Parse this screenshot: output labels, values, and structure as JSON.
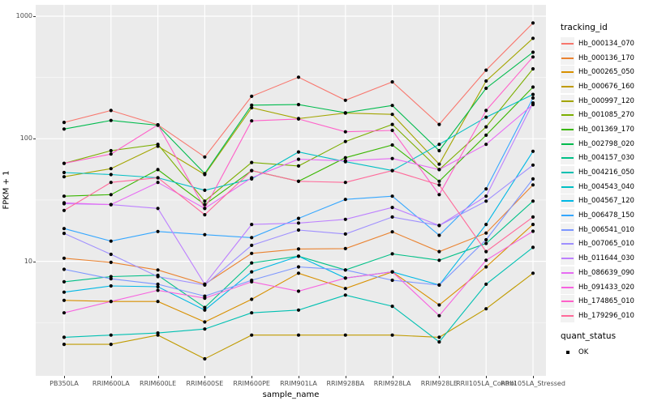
{
  "page": {
    "background": "#FFFFFF"
  },
  "panel": {
    "background": "#EBEBEB",
    "grid_major_color": "#FFFFFF",
    "grid_minor_color": "#FFFFFF",
    "tick_color": "#333333",
    "axis_text_color": "#4D4D4D"
  },
  "legend": {
    "tracking_title": "tracking_id",
    "quant_title": "quant_status",
    "quant_items": [
      {
        "label": "OK",
        "marker": "black-square"
      }
    ],
    "key_background": "#F2F2F2"
  },
  "chart_data": {
    "type": "line",
    "title": "",
    "xlabel": "sample_name",
    "ylabel": "FPKM + 1",
    "yscale": "log10",
    "ylim": [
      1.2,
      1200
    ],
    "y_ticks": [
      1000,
      100,
      10
    ],
    "y_minor_ticks": [
      316.2,
      31.62,
      3.162
    ],
    "grid": "on",
    "legend_position": "right",
    "point_marker_color": "#000000",
    "x": [
      "PB350LA",
      "RRIM600LA",
      "RRIM600LE",
      "RRIM600SE",
      "RRIM600PE",
      "RRIM901LA",
      "RRIM928BA",
      "RRIM928LA",
      "RRIM928LE",
      "RRII105LA_Control",
      "RRII105LA_Stressed"
    ],
    "series": [
      {
        "name": "Hb_000134_070",
        "color": "#F8766D",
        "quant_status": "OK",
        "values": [
          136,
          170,
          130,
          71,
          222,
          318,
          206,
          291,
          131,
          363,
          880
        ]
      },
      {
        "name": "Hb_000136_170",
        "color": "#EA8331",
        "quant_status": "OK",
        "values": [
          10.6,
          9.8,
          8.5,
          6.5,
          11.6,
          12.6,
          12.7,
          17.4,
          12,
          17,
          42
        ]
      },
      {
        "name": "Hb_000265_050",
        "color": "#D89000",
        "quant_status": "OK",
        "values": [
          4.8,
          4.7,
          4.7,
          3.2,
          4.9,
          8,
          6,
          8.2,
          4.4,
          9,
          20
        ]
      },
      {
        "name": "Hb_000676_160",
        "color": "#C09B00",
        "quant_status": "OK",
        "values": [
          2.1,
          2.1,
          2.5,
          1.6,
          2.5,
          2.5,
          2.5,
          2.5,
          2.4,
          4.1,
          8
        ]
      },
      {
        "name": "Hb_000997_120",
        "color": "#A3A500",
        "quant_status": "OK",
        "values": [
          49,
          57,
          87,
          51,
          179,
          146,
          162,
          158,
          62,
          296,
          660
        ]
      },
      {
        "name": "Hb_001085_270",
        "color": "#7CAE00",
        "quant_status": "OK",
        "values": [
          63,
          80,
          90,
          31,
          64,
          60,
          95,
          131,
          56,
          125,
          372
        ]
      },
      {
        "name": "Hb_001369_170",
        "color": "#39B600",
        "quant_status": "OK",
        "values": [
          34,
          35,
          56,
          29,
          55,
          45,
          70,
          89,
          45,
          107,
          264
        ]
      },
      {
        "name": "Hb_002798_020",
        "color": "#00BB4E",
        "quant_status": "OK",
        "values": [
          120,
          141,
          129,
          52,
          188,
          190,
          163,
          187,
          80,
          258,
          508
        ]
      },
      {
        "name": "Hb_004157_030",
        "color": "#00C087",
        "quant_status": "OK",
        "values": [
          6.8,
          7.5,
          7.7,
          4.2,
          9.7,
          11,
          8.5,
          11.5,
          10.2,
          14,
          31
        ]
      },
      {
        "name": "Hb_004216_050",
        "color": "#00C0B2",
        "quant_status": "OK",
        "values": [
          2.4,
          2.5,
          2.6,
          2.8,
          3.8,
          4,
          5.3,
          4.3,
          2.2,
          6.5,
          13
        ]
      },
      {
        "name": "Hb_004543_040",
        "color": "#00BFC4",
        "quant_status": "OK",
        "values": [
          53,
          51,
          48,
          38,
          47,
          78,
          65,
          55,
          90,
          150,
          230
        ]
      },
      {
        "name": "Hb_004567_120",
        "color": "#00B8E5",
        "quant_status": "OK",
        "values": [
          5.6,
          6.3,
          6.2,
          4,
          8.2,
          11,
          7.3,
          8.2,
          6.4,
          20,
          79
        ]
      },
      {
        "name": "Hb_006478_150",
        "color": "#35A7FF",
        "quant_status": "OK",
        "values": [
          18.5,
          14.6,
          17.5,
          16.5,
          15.6,
          22.4,
          32,
          34,
          16.3,
          39,
          215
        ]
      },
      {
        "name": "Hb_006541_010",
        "color": "#7C96FF",
        "quant_status": "OK",
        "values": [
          8.6,
          7.2,
          6.5,
          5.2,
          7,
          9,
          8.5,
          7,
          6.4,
          15,
          47
        ]
      },
      {
        "name": "Hb_007065_010",
        "color": "#9F8FFF",
        "quant_status": "OK",
        "values": [
          16.9,
          11.4,
          7.5,
          6.4,
          13.5,
          18,
          16.7,
          23,
          19.6,
          31,
          61
        ]
      },
      {
        "name": "Hb_011644_030",
        "color": "#BD80FF",
        "quant_status": "OK",
        "values": [
          29.5,
          29,
          27,
          6.5,
          20,
          20.5,
          22,
          27.5,
          19.6,
          34,
          196
        ]
      },
      {
        "name": "Hb_086639_090",
        "color": "#E76BF3",
        "quant_status": "OK",
        "values": [
          30,
          29,
          44,
          27,
          48,
          68,
          66,
          69,
          56,
          90,
          190
        ]
      },
      {
        "name": "Hb_091433_020",
        "color": "#F763E0",
        "quant_status": "OK",
        "values": [
          3.8,
          4.7,
          5.8,
          5,
          6.8,
          5.7,
          7.3,
          8.2,
          3.6,
          10.2,
          17.6
        ]
      },
      {
        "name": "Hb_174865_010",
        "color": "#FF61C9",
        "quant_status": "OK",
        "values": [
          63,
          75,
          130,
          27,
          140,
          145,
          114,
          117,
          35,
          170,
          465
        ]
      },
      {
        "name": "Hb_179296_010",
        "color": "#FF6A9A",
        "quant_status": "OK",
        "values": [
          26,
          44,
          48,
          24,
          55,
          45,
          44,
          55,
          42,
          12,
          23
        ]
      }
    ]
  }
}
